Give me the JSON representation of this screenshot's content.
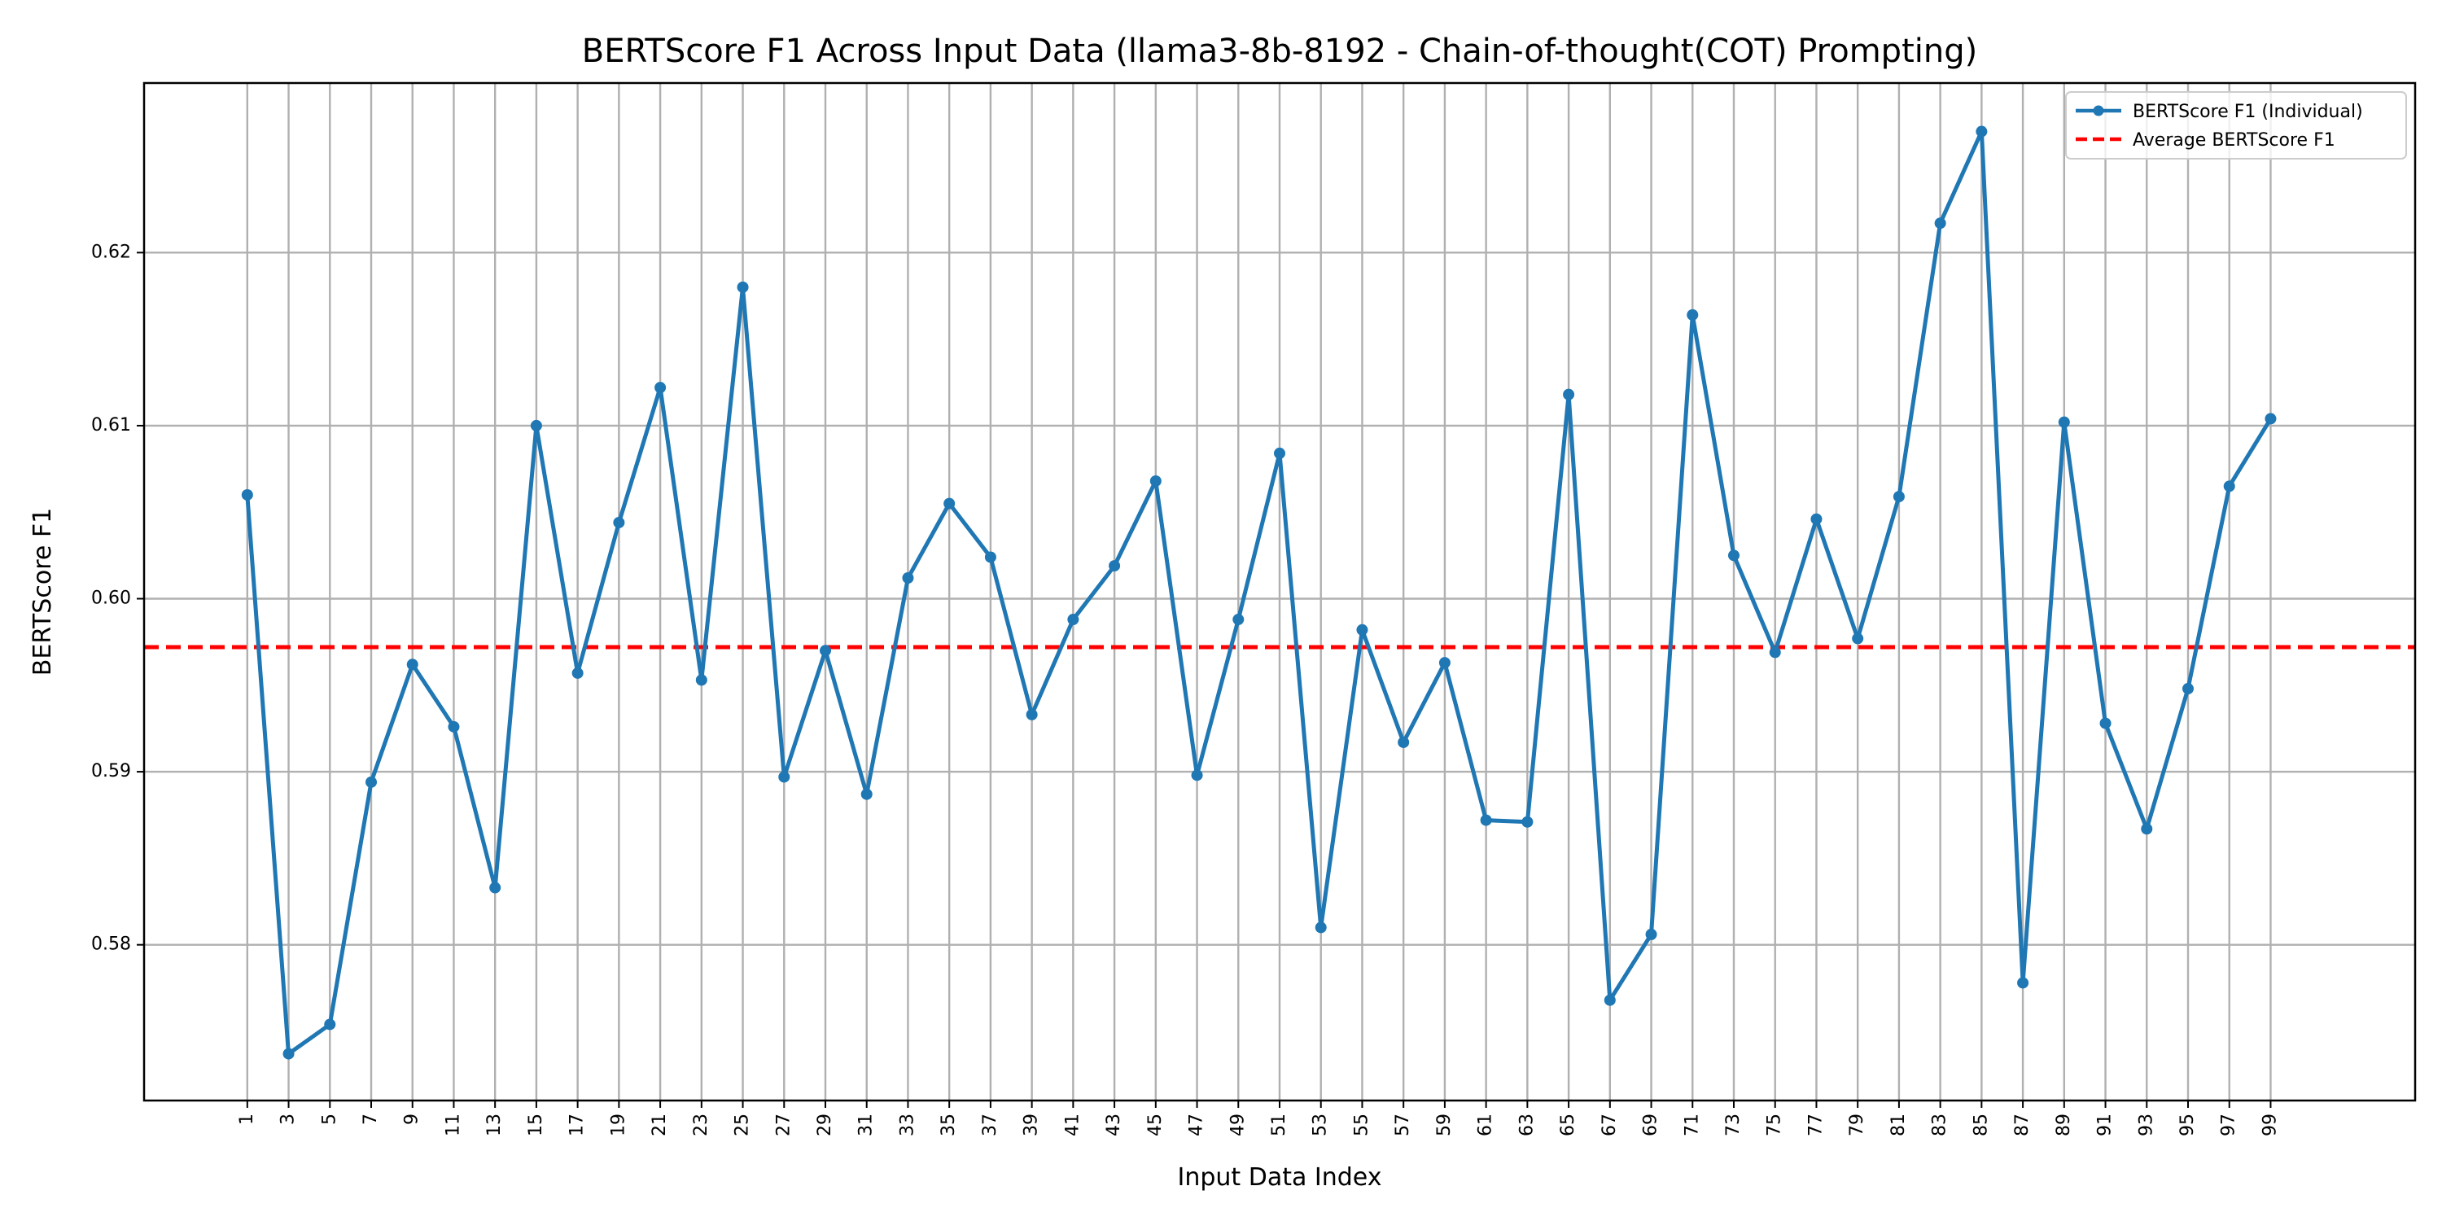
{
  "chart_data": {
    "type": "line",
    "title": "BERTScore F1 Across Input Data (llama3-8b-8192 - Chain-of-thought(COT) Prompting)",
    "xlabel": "Input Data Index",
    "ylabel": "BERTScore F1",
    "x": [
      1,
      3,
      5,
      7,
      9,
      11,
      13,
      15,
      17,
      19,
      21,
      23,
      25,
      27,
      29,
      31,
      33,
      35,
      37,
      39,
      41,
      43,
      45,
      47,
      49,
      51,
      53,
      55,
      57,
      59,
      61,
      63,
      65,
      67,
      69,
      71,
      73,
      75,
      77,
      79,
      81,
      83,
      85,
      87,
      89,
      91,
      93,
      95,
      97,
      99
    ],
    "xtick_labels": [
      "1",
      "3",
      "5",
      "7",
      "9",
      "11",
      "13",
      "15",
      "17",
      "19",
      "21",
      "23",
      "25",
      "27",
      "29",
      "31",
      "33",
      "35",
      "37",
      "39",
      "41",
      "43",
      "45",
      "47",
      "49",
      "51",
      "53",
      "55",
      "57",
      "59",
      "61",
      "63",
      "65",
      "67",
      "69",
      "71",
      "73",
      "75",
      "77",
      "79",
      "81",
      "83",
      "85",
      "87",
      "89",
      "91",
      "93",
      "95",
      "97",
      "99"
    ],
    "xlim": [
      -4,
      106
    ],
    "ylim": [
      0.571,
      0.6298
    ],
    "yticks": [
      0.58,
      0.59,
      0.6,
      0.61,
      0.62
    ],
    "ytick_labels": [
      "0.58",
      "0.59",
      "0.60",
      "0.61",
      "0.62"
    ],
    "grid": true,
    "legend_position": "top-right",
    "series": [
      {
        "name": "BERTScore F1 (Individual)",
        "color": "#1f77b4",
        "style": "solid-line-with-markers",
        "values": [
          0.606,
          0.5737,
          0.5754,
          0.5894,
          0.5962,
          0.5926,
          0.5833,
          0.61,
          0.5957,
          0.6044,
          0.6122,
          0.5953,
          0.618,
          0.5897,
          0.597,
          0.5887,
          0.6012,
          0.6055,
          0.6024,
          0.5933,
          0.5988,
          0.6019,
          0.6068,
          0.5898,
          0.5988,
          0.6084,
          0.581,
          0.5982,
          0.5917,
          0.5963,
          0.5872,
          0.5871,
          0.6118,
          0.5768,
          0.5806,
          0.6164,
          0.6025,
          0.5969,
          0.6046,
          0.5977,
          0.6059,
          0.6217,
          0.627,
          0.5778,
          0.6102,
          0.5928,
          0.5867,
          0.5948,
          0.6065,
          0.6104
        ]
      },
      {
        "name": "Average BERTScore F1",
        "color": "#ff0000",
        "style": "dashed-line",
        "value": 0.5972
      }
    ]
  }
}
